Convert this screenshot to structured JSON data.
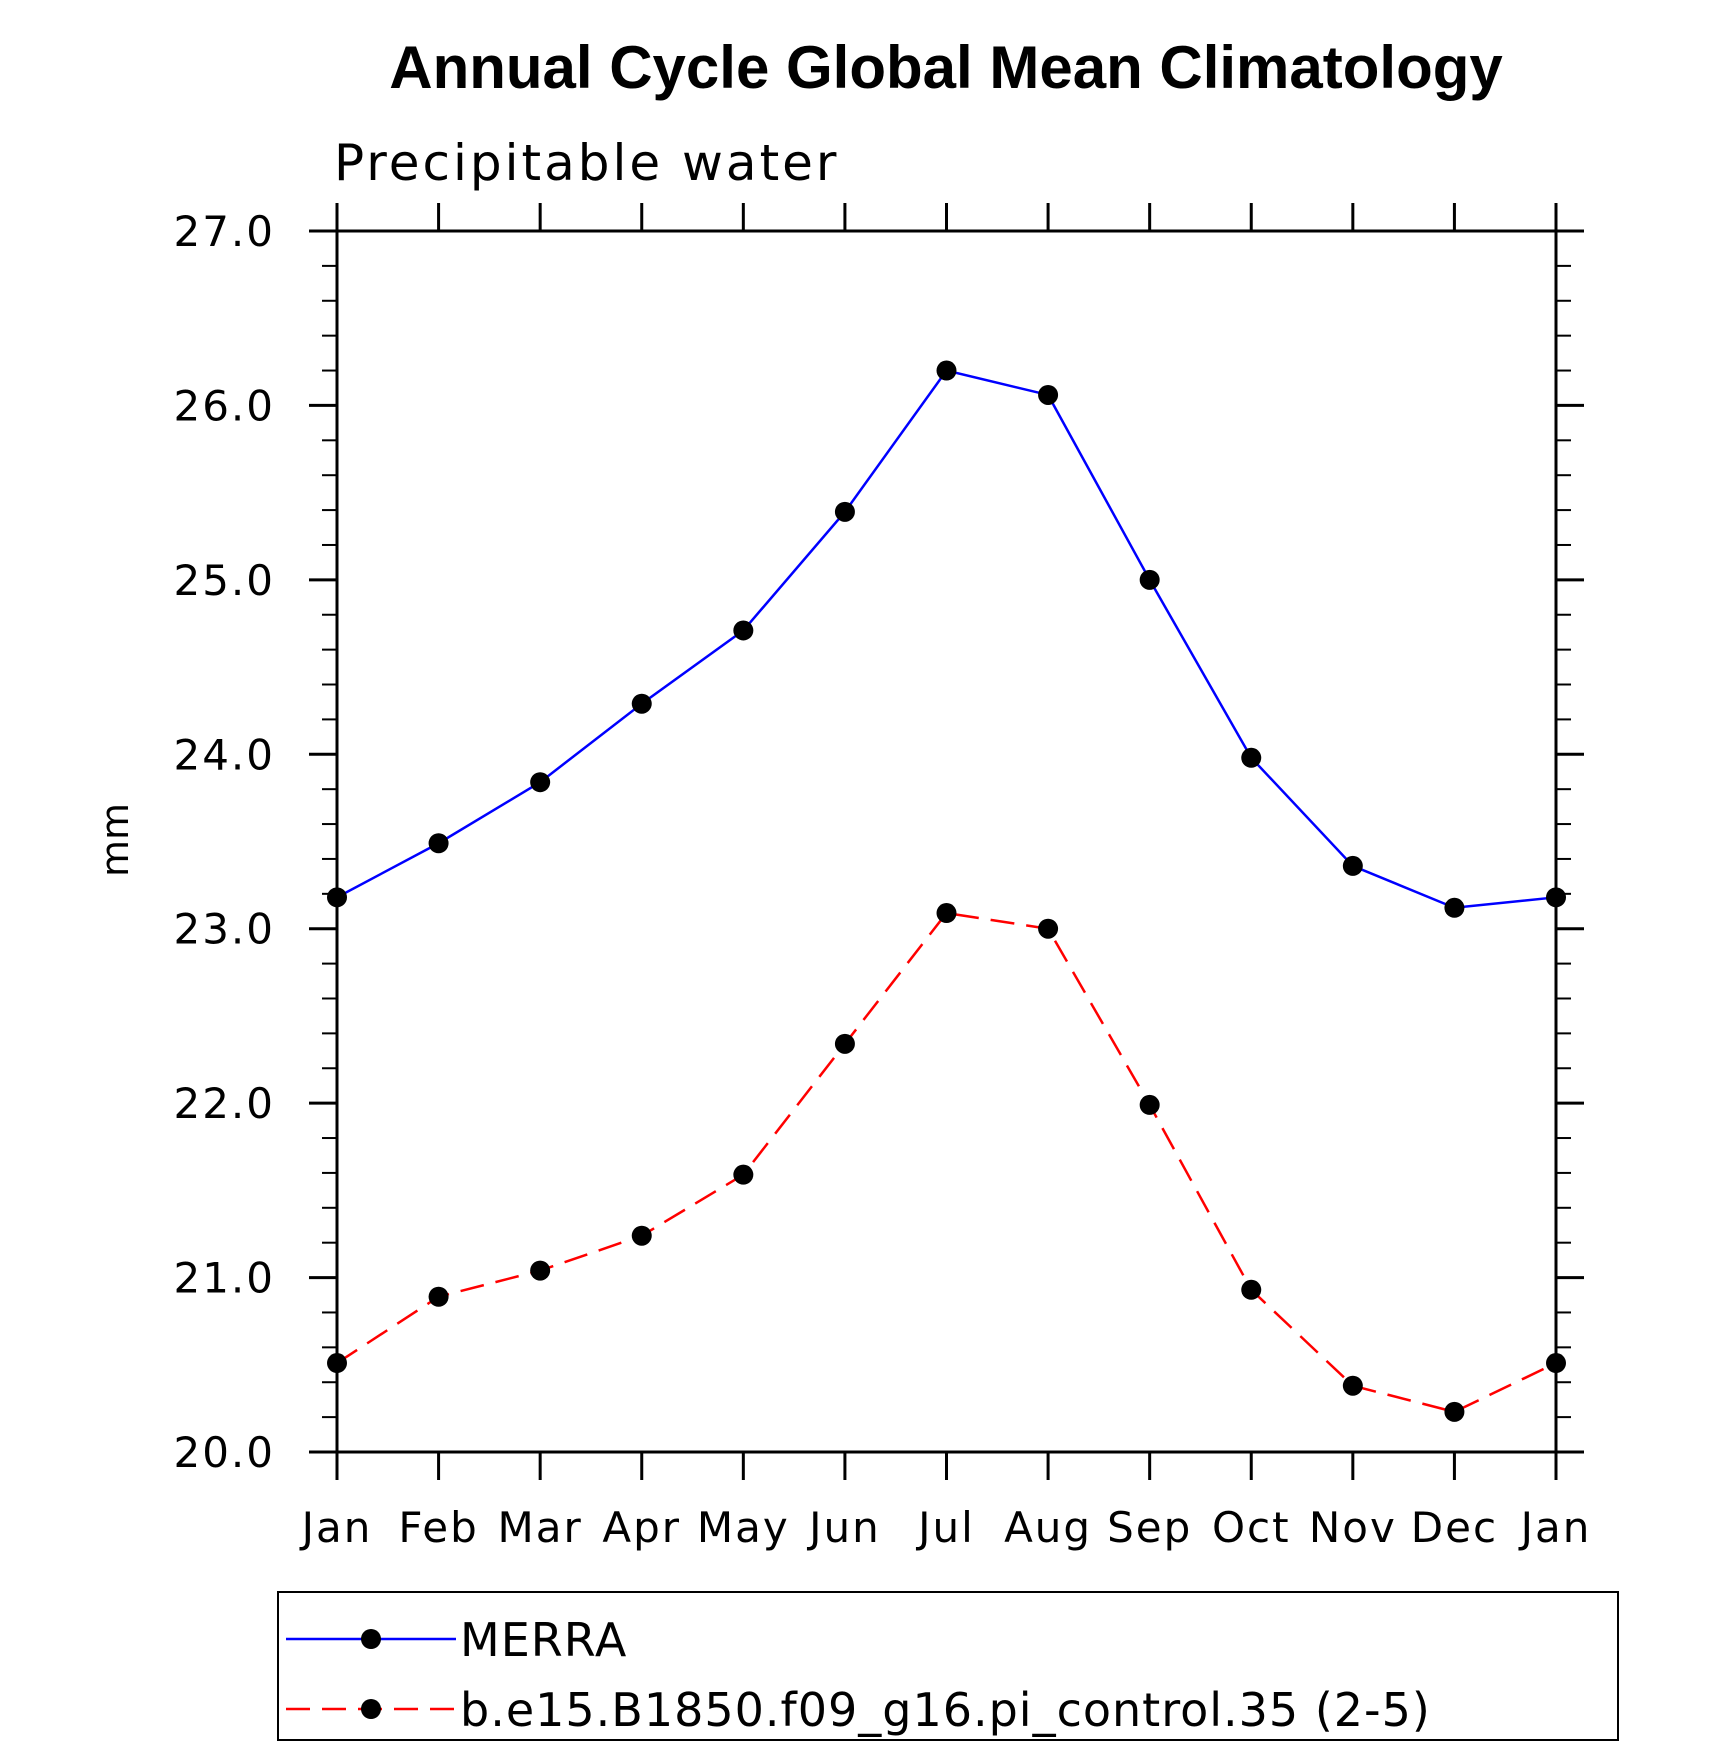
{
  "chart_data": {
    "type": "line",
    "title": "Annual Cycle Global Mean Climatology",
    "subtitle": "Precipitable water",
    "ylabel": "mm",
    "xlabel": "",
    "ylim": [
      20.0,
      27.0
    ],
    "yticks": [
      "20.0",
      "21.0",
      "22.0",
      "23.0",
      "24.0",
      "25.0",
      "26.0",
      "27.0"
    ],
    "categories": [
      "Jan",
      "Feb",
      "Mar",
      "Apr",
      "May",
      "Jun",
      "Jul",
      "Aug",
      "Sep",
      "Oct",
      "Nov",
      "Dec",
      "Jan"
    ],
    "grid": false,
    "legend_position": "bottom",
    "series": [
      {
        "name": "MERRA",
        "color": "#0000ff",
        "dash": "solid",
        "marker": "dot",
        "values": [
          23.18,
          23.49,
          23.84,
          24.29,
          24.71,
          25.39,
          26.2,
          26.06,
          25.0,
          23.98,
          23.36,
          23.12,
          23.18
        ]
      },
      {
        "name": "b.e15.B1850.f09_g16.pi_control.35 (2-5)",
        "color": "#ff0000",
        "dash": "dashed",
        "marker": "dot",
        "values": [
          20.51,
          20.89,
          21.04,
          21.24,
          21.59,
          22.34,
          23.09,
          23.0,
          21.99,
          20.93,
          20.38,
          20.23,
          20.51
        ]
      }
    ]
  }
}
